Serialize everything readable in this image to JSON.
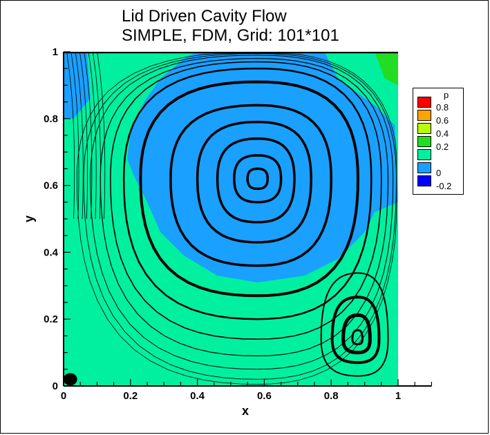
{
  "chart_data": {
    "type": "contour",
    "title": "Lid Driven Cavity Flow",
    "subtitle": "SIMPLE, FDM, Grid: 101*101",
    "xlabel": "x",
    "ylabel": "y",
    "xlim": [
      0,
      1.1
    ],
    "ylim": [
      0,
      1
    ],
    "x_ticks": [
      "0",
      "0.2",
      "0.4",
      "0.6",
      "0.8",
      "1"
    ],
    "y_ticks": [
      "0",
      "0.2",
      "0.4",
      "0.6",
      "0.8",
      "1"
    ],
    "x_tick_values": [
      0,
      0.2,
      0.4,
      0.6,
      0.8,
      1.0
    ],
    "y_tick_values": [
      0,
      0.2,
      0.4,
      0.6,
      0.8,
      1.0
    ],
    "legend_placement": "right",
    "legend": {
      "title": "p",
      "levels": [
        {
          "label": "0.8",
          "value": 0.8,
          "color": "#ff0000"
        },
        {
          "label": "0.6",
          "value": 0.6,
          "color": "#ffa500"
        },
        {
          "label": "0.4",
          "value": 0.4,
          "color": "#b8ff00"
        },
        {
          "label": "0.2",
          "value": 0.2,
          "color": "#22dd22"
        },
        {
          "label": "",
          "value": 0.1,
          "color": "#00f0a0"
        },
        {
          "label": "0",
          "value": 0.0,
          "color": "#1aa0ff"
        },
        {
          "label": "-0.2",
          "value": -0.2,
          "color": "#0000ff"
        }
      ]
    },
    "field_colors": {
      "background": "#00f0a0",
      "low": "#1aa0ff",
      "high": "#22dd22",
      "streamline": "#000000"
    },
    "primary_vortex_center": [
      0.58,
      0.62
    ],
    "secondary_vortex_center": [
      0.88,
      0.14
    ],
    "corner_vortex_center": [
      0.02,
      0.02
    ],
    "grid": false
  }
}
